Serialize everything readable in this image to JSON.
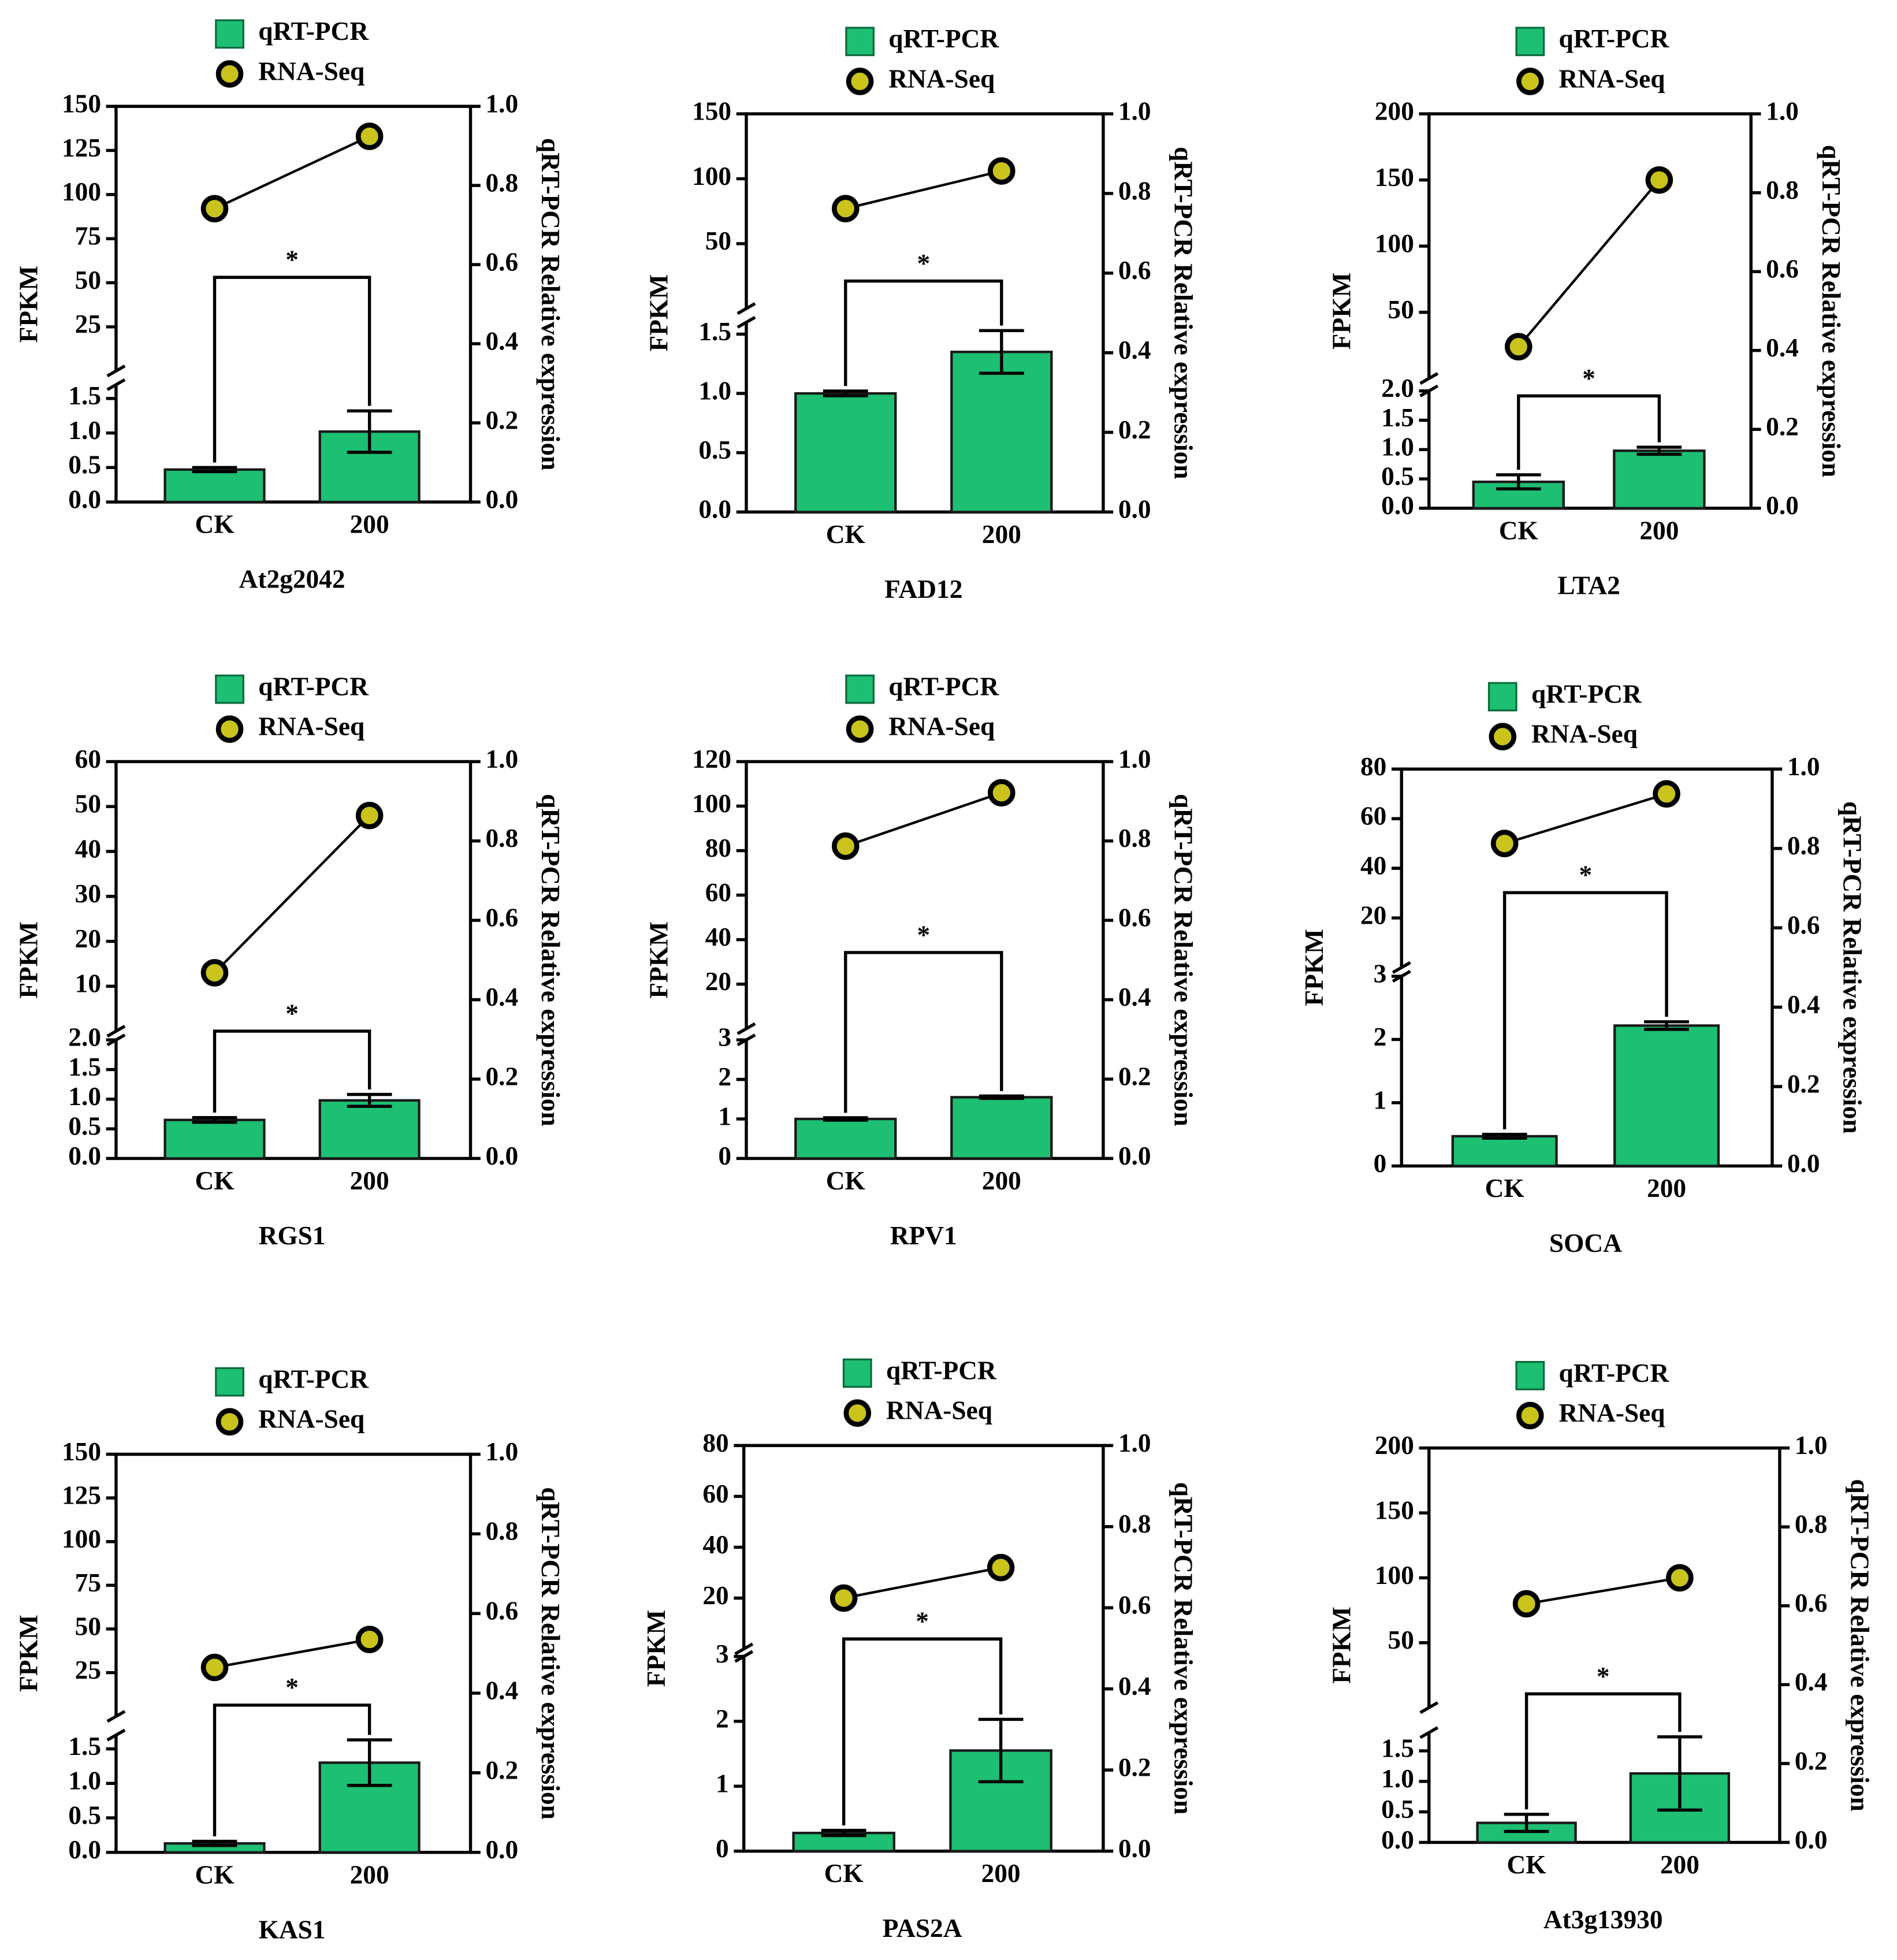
{
  "chart_data": [
    {
      "type": "bar",
      "title": "At2g2042",
      "categories": [
        "CK",
        "200"
      ],
      "series": [
        {
          "name": "qRT-PCR",
          "color": "#1dbf73",
          "values": [
            0.47,
            1.02
          ],
          "errors": [
            0.03,
            0.3
          ]
        },
        {
          "name": "RNA-Seq",
          "color": "#c9c31b",
          "type": "line",
          "axis": "y_top",
          "values": [
            92,
            133
          ]
        }
      ],
      "annotation": "*",
      "ylabel": "FPKM",
      "y2label": "qRT-PCR Relative expression",
      "ylim": [
        0,
        1.7
      ],
      "yticks": [
        {
          "value": 0,
          "label": "0.0"
        },
        0.5,
        {
          "value": 1,
          "label": "1.0"
        },
        1.5
      ],
      "ylim_top": [
        0,
        150
      ],
      "yticks_top": [
        25,
        50,
        75,
        100,
        125,
        150
      ],
      "y2lim": [
        0,
        1
      ],
      "y2ticks": [
        {
          "value": 0,
          "label": "0.0"
        },
        0.2,
        0.4,
        0.6,
        0.8,
        {
          "value": 1,
          "label": "1.0"
        }
      ]
    },
    {
      "type": "bar",
      "title": "FAD12",
      "categories": [
        "CK",
        "200"
      ],
      "series": [
        {
          "name": "qRT-PCR",
          "color": "#1dbf73",
          "values": [
            1.0,
            1.35
          ],
          "errors": [
            0.02,
            0.18
          ]
        },
        {
          "name": "RNA-Seq",
          "color": "#c9c31b",
          "type": "line",
          "axis": "y_top",
          "values": [
            77,
            106
          ]
        }
      ],
      "annotation": "*",
      "ylabel": "FPKM",
      "y2label": "qRT-PCR Relative expression",
      "ylim": [
        0,
        1.6
      ],
      "yticks": [
        {
          "value": 0,
          "label": "0.0"
        },
        0.5,
        {
          "value": 1,
          "label": "1.0"
        },
        1.5
      ],
      "ylim_top": [
        0,
        150
      ],
      "yticks_top": [
        50,
        100,
        150
      ],
      "y2lim": [
        0,
        1
      ],
      "y2ticks": [
        {
          "value": 0,
          "label": "0.0"
        },
        0.2,
        0.4,
        0.6,
        0.8,
        {
          "value": 1,
          "label": "1.0"
        }
      ]
    },
    {
      "type": "bar",
      "title": "LTA2",
      "categories": [
        "CK",
        "200"
      ],
      "series": [
        {
          "name": "qRT-PCR",
          "color": "#1dbf73",
          "values": [
            0.45,
            0.98
          ],
          "errors": [
            0.12,
            0.06
          ]
        },
        {
          "name": "RNA-Seq",
          "color": "#c9c31b",
          "type": "line",
          "axis": "y_top",
          "values": [
            24,
            150
          ]
        }
      ],
      "annotation": "*",
      "ylabel": "FPKM",
      "y2label": "qRT-PCR Relative expression",
      "ylim": [
        0,
        2
      ],
      "yticks": [
        {
          "value": 0,
          "label": "0.0"
        },
        0.5,
        {
          "value": 1,
          "label": "1.0"
        },
        1.5,
        {
          "value": 2,
          "label": "2.0"
        }
      ],
      "ylim_top": [
        0,
        200
      ],
      "yticks_top": [
        50,
        100,
        150,
        200
      ],
      "y2lim": [
        0,
        1
      ],
      "y2ticks": [
        {
          "value": 0,
          "label": "0.0"
        },
        0.2,
        0.4,
        0.6,
        0.8,
        {
          "value": 1,
          "label": "1.0"
        }
      ]
    },
    {
      "type": "bar",
      "title": "RGS1",
      "categories": [
        "CK",
        "200"
      ],
      "series": [
        {
          "name": "qRT-PCR",
          "color": "#1dbf73",
          "values": [
            0.65,
            0.98
          ],
          "errors": [
            0.04,
            0.1
          ]
        },
        {
          "name": "RNA-Seq",
          "color": "#c9c31b",
          "type": "line",
          "axis": "y_top",
          "values": [
            13,
            48
          ]
        }
      ],
      "annotation": "*",
      "ylabel": "FPKM",
      "y2label": "qRT-PCR Relative expression",
      "ylim": [
        0,
        2
      ],
      "yticks": [
        {
          "value": 0,
          "label": "0.0"
        },
        0.5,
        {
          "value": 1,
          "label": "1.0"
        },
        1.5,
        {
          "value": 2,
          "label": "2.0"
        }
      ],
      "ylim_top": [
        0,
        60
      ],
      "yticks_top": [
        10,
        20,
        30,
        40,
        50,
        60
      ],
      "y2lim": [
        0,
        1
      ],
      "y2ticks": [
        {
          "value": 0,
          "label": "0.0"
        },
        0.2,
        0.4,
        0.6,
        0.8,
        {
          "value": 1,
          "label": "1.0"
        }
      ]
    },
    {
      "type": "bar",
      "title": "RPV1",
      "categories": [
        "CK",
        "200"
      ],
      "series": [
        {
          "name": "qRT-PCR",
          "color": "#1dbf73",
          "values": [
            1.0,
            1.55
          ],
          "errors": [
            0.03,
            0.03
          ]
        },
        {
          "name": "RNA-Seq",
          "color": "#c9c31b",
          "type": "line",
          "axis": "y_top",
          "values": [
            82,
            106
          ]
        }
      ],
      "annotation": "*",
      "ylabel": "FPKM",
      "y2label": "qRT-PCR Relative expression",
      "ylim": [
        0,
        3
      ],
      "yticks": [
        0,
        1,
        2,
        3
      ],
      "ylim_top": [
        0,
        120
      ],
      "yticks_top": [
        20,
        40,
        60,
        80,
        100,
        120
      ],
      "y2lim": [
        0,
        1
      ],
      "y2ticks": [
        {
          "value": 0,
          "label": "0.0"
        },
        0.2,
        0.4,
        0.6,
        0.8,
        {
          "value": 1,
          "label": "1.0"
        }
      ]
    },
    {
      "type": "bar",
      "title": "SOCA",
      "categories": [
        "CK",
        "200"
      ],
      "series": [
        {
          "name": "qRT-PCR",
          "color": "#1dbf73",
          "values": [
            0.47,
            2.22
          ],
          "errors": [
            0.03,
            0.06
          ]
        },
        {
          "name": "RNA-Seq",
          "color": "#c9c31b",
          "type": "line",
          "axis": "y_top",
          "values": [
            50,
            70
          ]
        }
      ],
      "annotation": "*",
      "ylabel": "FPKM",
      "y2label": "qRT-PCR Relative expression",
      "ylim": [
        0,
        3
      ],
      "yticks": [
        0,
        1,
        2,
        3
      ],
      "ylim_top": [
        0,
        80
      ],
      "yticks_top": [
        20,
        40,
        60,
        80
      ],
      "y2lim": [
        0,
        1
      ],
      "y2ticks": [
        {
          "value": 0,
          "label": "0.0"
        },
        0.2,
        0.4,
        0.6,
        0.8,
        {
          "value": 1,
          "label": "1.0"
        }
      ]
    },
    {
      "type": "bar",
      "title": "KAS1",
      "categories": [
        "CK",
        "200"
      ],
      "series": [
        {
          "name": "qRT-PCR",
          "color": "#1dbf73",
          "values": [
            0.13,
            1.3
          ],
          "errors": [
            0.03,
            0.33
          ]
        },
        {
          "name": "RNA-Seq",
          "color": "#c9c31b",
          "type": "line",
          "axis": "y_top",
          "values": [
            28,
            44
          ]
        }
      ],
      "annotation": "*",
      "ylabel": "FPKM",
      "y2label": "qRT-PCR Relative expression",
      "ylim": [
        0,
        1.7
      ],
      "yticks": [
        {
          "value": 0,
          "label": "0.0"
        },
        0.5,
        {
          "value": 1,
          "label": "1.0"
        },
        1.5
      ],
      "ylim_top": [
        0,
        150
      ],
      "yticks_top": [
        25,
        50,
        75,
        100,
        125,
        150
      ],
      "y2lim": [
        0,
        1
      ],
      "y2ticks": [
        {
          "value": 0,
          "label": "0.0"
        },
        0.2,
        0.4,
        0.6,
        0.8,
        {
          "value": 1,
          "label": "1.0"
        }
      ]
    },
    {
      "type": "bar",
      "title": "PAS2A",
      "categories": [
        "CK",
        "200"
      ],
      "series": [
        {
          "name": "qRT-PCR",
          "color": "#1dbf73",
          "values": [
            0.28,
            1.55
          ],
          "errors": [
            0.04,
            0.48
          ]
        },
        {
          "name": "RNA-Seq",
          "color": "#c9c31b",
          "type": "line",
          "axis": "y_top",
          "values": [
            20,
            32
          ]
        }
      ],
      "annotation": "*",
      "ylabel": "FPKM",
      "y2label": "qRT-PCR Relative expression",
      "ylim": [
        0,
        3
      ],
      "yticks": [
        0,
        1,
        2,
        3
      ],
      "ylim_top": [
        0,
        80
      ],
      "yticks_top": [
        20,
        40,
        60,
        80
      ],
      "y2lim": [
        0,
        1
      ],
      "y2ticks": [
        {
          "value": 0,
          "label": "0.0"
        },
        0.2,
        0.4,
        0.6,
        0.8,
        {
          "value": 1,
          "label": "1.0"
        }
      ]
    },
    {
      "type": "bar",
      "title": "At3g13930",
      "categories": [
        "CK",
        "200"
      ],
      "series": [
        {
          "name": "qRT-PCR",
          "color": "#1dbf73",
          "values": [
            0.32,
            1.13
          ],
          "errors": [
            0.14,
            0.6
          ]
        },
        {
          "name": "RNA-Seq",
          "color": "#c9c31b",
          "type": "line",
          "axis": "y_top",
          "values": [
            80,
            100
          ]
        }
      ],
      "annotation": "*",
      "ylabel": "FPKM",
      "y2label": "qRT-PCR Relative expression",
      "ylim": [
        0,
        1.8
      ],
      "yticks": [
        {
          "value": 0,
          "label": "0.0"
        },
        0.5,
        {
          "value": 1,
          "label": "1.0"
        },
        1.5
      ],
      "ylim_top": [
        0,
        200
      ],
      "yticks_top": [
        50,
        100,
        150,
        200
      ],
      "y2lim": [
        0,
        1
      ],
      "y2ticks": [
        {
          "value": 0,
          "label": "0.0"
        },
        0.2,
        0.4,
        0.6,
        0.8,
        {
          "value": 1,
          "label": "1.0"
        }
      ]
    }
  ]
}
